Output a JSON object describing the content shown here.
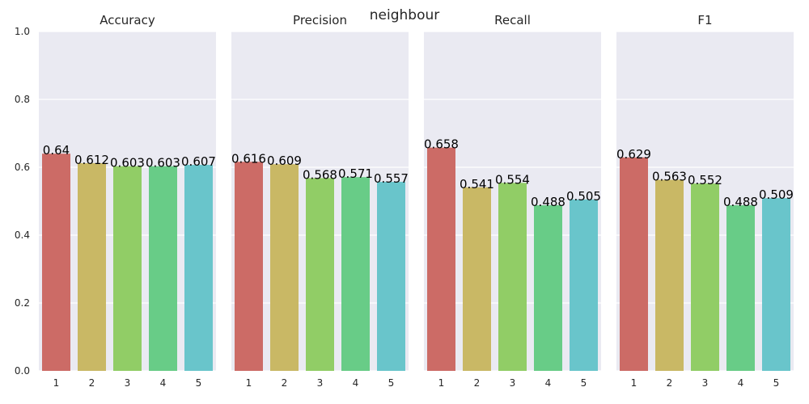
{
  "chart_data": {
    "type": "bar",
    "title": "neighbour",
    "ylim": [
      0,
      1.0
    ],
    "yticks": [
      "0.0",
      "0.2",
      "0.4",
      "0.6",
      "0.8",
      "1.0"
    ],
    "categories": [
      "1",
      "2",
      "3",
      "4",
      "5"
    ],
    "bar_colors": [
      "#cc6b66",
      "#c9b865",
      "#91cd66",
      "#68cc87",
      "#69c5cb"
    ],
    "background": "#eaeaf2",
    "grid": true,
    "panels": [
      {
        "title": "Accuracy",
        "values": [
          0.64,
          0.612,
          0.603,
          0.603,
          0.607
        ],
        "labels": [
          "0.64",
          "0.612",
          "0.603",
          "0.603",
          "0.607"
        ]
      },
      {
        "title": "Precision",
        "values": [
          0.616,
          0.609,
          0.568,
          0.571,
          0.557
        ],
        "labels": [
          "0.616",
          "0.609",
          "0.568",
          "0.571",
          "0.557"
        ]
      },
      {
        "title": "Recall",
        "values": [
          0.658,
          0.541,
          0.554,
          0.488,
          0.505
        ],
        "labels": [
          "0.658",
          "0.541",
          "0.554",
          "0.488",
          "0.505"
        ]
      },
      {
        "title": "F1",
        "values": [
          0.629,
          0.563,
          0.552,
          0.488,
          0.509
        ],
        "labels": [
          "0.629",
          "0.563",
          "0.552",
          "0.488",
          "0.509"
        ]
      }
    ]
  }
}
